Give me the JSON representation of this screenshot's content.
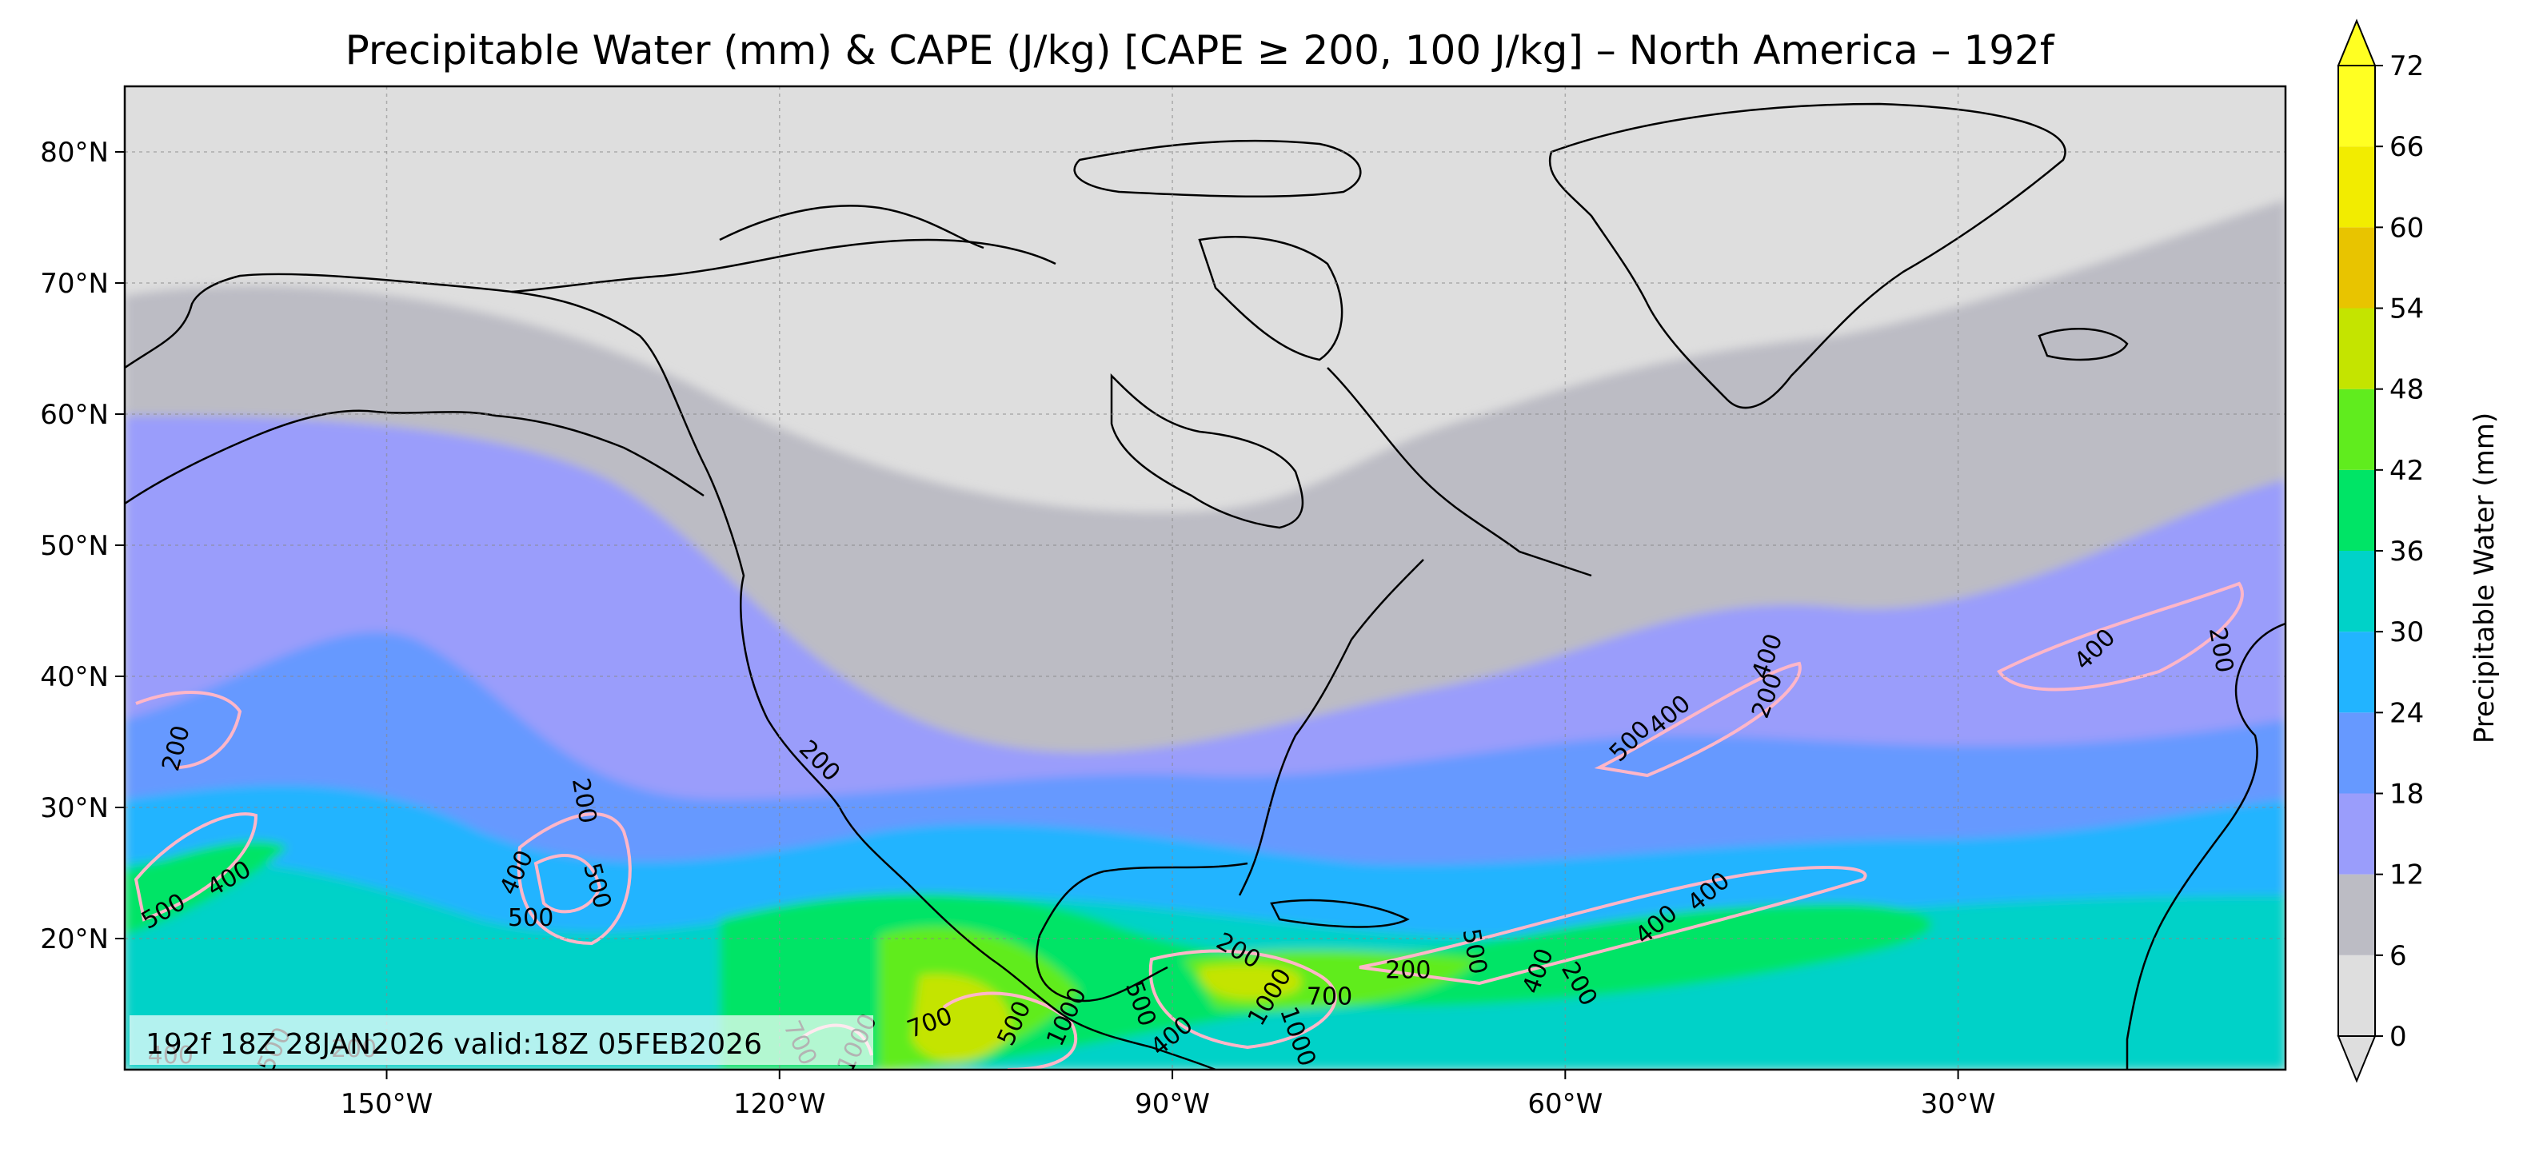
{
  "title": "Precipitable Water (mm) & CAPE (J/kg) [CAPE ≥ 200, 100 J/kg] – North America – 192f",
  "run_info": "192f 18Z 28JAN2026 valid:18Z 05FEB2026",
  "map": {
    "lon_range": [
      -170,
      -5
    ],
    "lat_range": [
      10,
      85
    ],
    "lon_ticks": [
      {
        "value": -150,
        "label": "150°W"
      },
      {
        "value": -120,
        "label": "120°W"
      },
      {
        "value": -90,
        "label": "90°W"
      },
      {
        "value": -60,
        "label": "60°W"
      },
      {
        "value": -30,
        "label": "30°W"
      }
    ],
    "lat_ticks": [
      {
        "value": 80,
        "label": "80°N"
      },
      {
        "value": 70,
        "label": "70°N"
      },
      {
        "value": 60,
        "label": "60°N"
      },
      {
        "value": 50,
        "label": "50°N"
      },
      {
        "value": 40,
        "label": "40°N"
      },
      {
        "value": 30,
        "label": "30°N"
      },
      {
        "value": 20,
        "label": "20°N"
      }
    ],
    "gridlines": true
  },
  "colorbar": {
    "label": "Precipitable Water (mm)",
    "extend": "both",
    "levels": [
      {
        "from": 0,
        "to": 6,
        "color": "#dedede"
      },
      {
        "from": 6,
        "to": 12,
        "color": "#bcbcc4"
      },
      {
        "from": 12,
        "to": 18,
        "color": "#9a9dfb"
      },
      {
        "from": 18,
        "to": 24,
        "color": "#6699ff"
      },
      {
        "from": 24,
        "to": 30,
        "color": "#22b4ff"
      },
      {
        "from": 30,
        "to": 36,
        "color": "#00d2c8"
      },
      {
        "from": 36,
        "to": 42,
        "color": "#00e466"
      },
      {
        "from": 42,
        "to": 48,
        "color": "#60ec1e"
      },
      {
        "from": 48,
        "to": 54,
        "color": "#c4e400"
      },
      {
        "from": 54,
        "to": 60,
        "color": "#e8c400"
      },
      {
        "from": 60,
        "to": 66,
        "color": "#f2ec00"
      },
      {
        "from": 66,
        "to": 72,
        "color": "#ffff22"
      }
    ],
    "ticks": [
      "0",
      "6",
      "12",
      "18",
      "24",
      "30",
      "36",
      "42",
      "48",
      "54",
      "60",
      "66",
      "72"
    ]
  },
  "cape_contours": {
    "color": "#ffb6c8",
    "labels": [
      {
        "text": "200",
        "lon": -166,
        "lat": 34.5,
        "rot": -75
      },
      {
        "text": "400",
        "lon": -162,
        "lat": 24.5,
        "rot": -30
      },
      {
        "text": "500",
        "lon": -167,
        "lat": 22,
        "rot": -30
      },
      {
        "text": "400",
        "lon": -140,
        "lat": 25,
        "rot": -65
      },
      {
        "text": "500",
        "lon": -139,
        "lat": 21.5,
        "rot": 0
      },
      {
        "text": "500",
        "lon": -134,
        "lat": 24,
        "rot": 75
      },
      {
        "text": "200",
        "lon": -135,
        "lat": 30.5,
        "rot": 80
      },
      {
        "text": "200",
        "lon": -117,
        "lat": 33.5,
        "rot": 45
      },
      {
        "text": "400",
        "lon": -52,
        "lat": 37,
        "rot": -40
      },
      {
        "text": "500",
        "lon": -55,
        "lat": 35,
        "rot": -45
      },
      {
        "text": "400",
        "lon": -44.5,
        "lat": 41.5,
        "rot": -70
      },
      {
        "text": "200",
        "lon": -44.5,
        "lat": 38.5,
        "rot": -70
      },
      {
        "text": "400",
        "lon": -19.5,
        "lat": 42,
        "rot": -45
      },
      {
        "text": "200",
        "lon": -10,
        "lat": 42,
        "rot": 80
      },
      {
        "text": "400",
        "lon": -53,
        "lat": 21,
        "rot": -40
      },
      {
        "text": "400",
        "lon": -49,
        "lat": 23.5,
        "rot": -40
      },
      {
        "text": "200",
        "lon": -85,
        "lat": 19,
        "rot": 30
      },
      {
        "text": "700",
        "lon": -78,
        "lat": 15.5,
        "rot": 0
      },
      {
        "text": "200",
        "lon": -72,
        "lat": 17.5,
        "rot": 0
      },
      {
        "text": "500",
        "lon": -67,
        "lat": 19,
        "rot": 80
      },
      {
        "text": "400",
        "lon": -62,
        "lat": 17.5,
        "rot": -70
      },
      {
        "text": "200",
        "lon": -59,
        "lat": 16.5,
        "rot": 60
      },
      {
        "text": "1000",
        "lon": -82.5,
        "lat": 15.5,
        "rot": -60
      },
      {
        "text": "1000",
        "lon": -80.5,
        "lat": 12.5,
        "rot": 70
      },
      {
        "text": "700",
        "lon": -108.5,
        "lat": 13.5,
        "rot": -20
      },
      {
        "text": "500",
        "lon": -102,
        "lat": 13.5,
        "rot": -65
      },
      {
        "text": "1000",
        "lon": -98,
        "lat": 14,
        "rot": -65
      },
      {
        "text": "500",
        "lon": -92.5,
        "lat": 15,
        "rot": 70
      },
      {
        "text": "400",
        "lon": -90,
        "lat": 12.5,
        "rot": -40
      },
      {
        "text": "1000",
        "lon": -114,
        "lat": 12,
        "rot": -65
      },
      {
        "text": "700",
        "lon": -118.5,
        "lat": 12,
        "rot": 65
      },
      {
        "text": "400",
        "lon": -166.5,
        "lat": 11,
        "rot": 0
      },
      {
        "text": "500",
        "lon": -158.5,
        "lat": 11.5,
        "rot": -65
      },
      {
        "text": "200",
        "lon": -152.5,
        "lat": 11.5,
        "rot": 0
      }
    ]
  }
}
